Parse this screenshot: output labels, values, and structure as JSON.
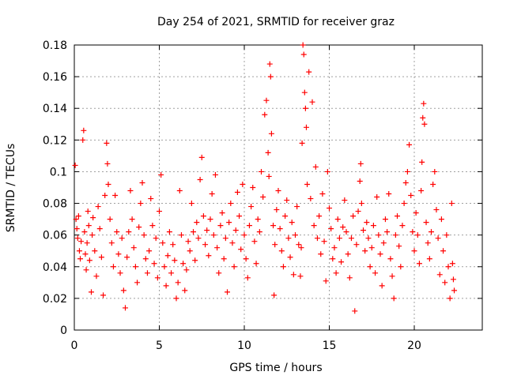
{
  "chart_data": {
    "type": "scatter",
    "title": "Day 254 of 2021, SRMTID for receiver graz",
    "xlabel": "GPS time / hours",
    "ylabel": "SRMTID / TECUs",
    "xlim": [
      0,
      24
    ],
    "ylim": [
      0,
      0.18
    ],
    "xticks": [
      0,
      5,
      10,
      15,
      20
    ],
    "xtick_labels": [
      "0",
      "5",
      "10",
      "15",
      "20"
    ],
    "yticks": [
      0,
      0.02,
      0.04,
      0.06,
      0.08,
      0.1,
      0.12,
      0.14,
      0.16,
      0.18
    ],
    "ytick_labels": [
      "0",
      "0.02",
      "0.04",
      "0.06",
      "0.08",
      "0.1",
      "0.12",
      "0.14",
      "0.16",
      "0.18"
    ],
    "grid": true,
    "marker": "plus",
    "color": "#ff0000",
    "series": [
      {
        "name": "graz",
        "points": [
          [
            0.05,
            0.104
          ],
          [
            0.1,
            0.07
          ],
          [
            0.15,
            0.064
          ],
          [
            0.2,
            0.058
          ],
          [
            0.25,
            0.072
          ],
          [
            0.3,
            0.05
          ],
          [
            0.35,
            0.045
          ],
          [
            0.4,
            0.056
          ],
          [
            0.5,
            0.12
          ],
          [
            0.55,
            0.126
          ],
          [
            0.6,
            0.062
          ],
          [
            0.65,
            0.048
          ],
          [
            0.7,
            0.038
          ],
          [
            0.75,
            0.055
          ],
          [
            0.8,
            0.075
          ],
          [
            0.85,
            0.066
          ],
          [
            0.9,
            0.044
          ],
          [
            1.0,
            0.024
          ],
          [
            1.05,
            0.06
          ],
          [
            1.1,
            0.071
          ],
          [
            1.2,
            0.05
          ],
          [
            1.3,
            0.034
          ],
          [
            1.4,
            0.078
          ],
          [
            1.5,
            0.064
          ],
          [
            1.6,
            0.046
          ],
          [
            1.7,
            0.022
          ],
          [
            1.8,
            0.085
          ],
          [
            1.9,
            0.118
          ],
          [
            1.95,
            0.105
          ],
          [
            2.0,
            0.092
          ],
          [
            2.1,
            0.07
          ],
          [
            2.2,
            0.055
          ],
          [
            2.3,
            0.04
          ],
          [
            2.4,
            0.085
          ],
          [
            2.5,
            0.062
          ],
          [
            2.6,
            0.048
          ],
          [
            2.7,
            0.036
          ],
          [
            2.8,
            0.058
          ],
          [
            2.9,
            0.025
          ],
          [
            3.0,
            0.014
          ],
          [
            3.1,
            0.046
          ],
          [
            3.2,
            0.062
          ],
          [
            3.3,
            0.088
          ],
          [
            3.4,
            0.07
          ],
          [
            3.5,
            0.052
          ],
          [
            3.6,
            0.04
          ],
          [
            3.7,
            0.03
          ],
          [
            3.8,
            0.065
          ],
          [
            3.9,
            0.08
          ],
          [
            4.0,
            0.093
          ],
          [
            4.1,
            0.06
          ],
          [
            4.2,
            0.045
          ],
          [
            4.3,
            0.036
          ],
          [
            4.4,
            0.05
          ],
          [
            4.5,
            0.083
          ],
          [
            4.6,
            0.066
          ],
          [
            4.7,
            0.042
          ],
          [
            4.8,
            0.058
          ],
          [
            4.9,
            0.033
          ],
          [
            5.0,
            0.075
          ],
          [
            5.1,
            0.098
          ],
          [
            5.2,
            0.055
          ],
          [
            5.3,
            0.04
          ],
          [
            5.4,
            0.028
          ],
          [
            5.5,
            0.047
          ],
          [
            5.6,
            0.062
          ],
          [
            5.7,
            0.036
          ],
          [
            5.8,
            0.054
          ],
          [
            5.9,
            0.044
          ],
          [
            6.0,
            0.02
          ],
          [
            6.1,
            0.03
          ],
          [
            6.2,
            0.088
          ],
          [
            6.3,
            0.06
          ],
          [
            6.4,
            0.042
          ],
          [
            6.5,
            0.025
          ],
          [
            6.6,
            0.038
          ],
          [
            6.7,
            0.056
          ],
          [
            6.8,
            0.05
          ],
          [
            6.9,
            0.08
          ],
          [
            7.0,
            0.062
          ],
          [
            7.1,
            0.044
          ],
          [
            7.2,
            0.068
          ],
          [
            7.3,
            0.058
          ],
          [
            7.4,
            0.095
          ],
          [
            7.5,
            0.109
          ],
          [
            7.6,
            0.072
          ],
          [
            7.7,
            0.054
          ],
          [
            7.8,
            0.063
          ],
          [
            7.9,
            0.047
          ],
          [
            8.0,
            0.07
          ],
          [
            8.1,
            0.086
          ],
          [
            8.2,
            0.06
          ],
          [
            8.3,
            0.098
          ],
          [
            8.4,
            0.052
          ],
          [
            8.5,
            0.036
          ],
          [
            8.6,
            0.066
          ],
          [
            8.7,
            0.074
          ],
          [
            8.8,
            0.045
          ],
          [
            8.9,
            0.058
          ],
          [
            9.0,
            0.024
          ],
          [
            9.1,
            0.068
          ],
          [
            9.2,
            0.08
          ],
          [
            9.3,
            0.055
          ],
          [
            9.4,
            0.04
          ],
          [
            9.5,
            0.063
          ],
          [
            9.6,
            0.087
          ],
          [
            9.7,
            0.072
          ],
          [
            9.8,
            0.051
          ],
          [
            9.9,
            0.092
          ],
          [
            10.0,
            0.06
          ],
          [
            10.1,
            0.045
          ],
          [
            10.2,
            0.033
          ],
          [
            10.3,
            0.066
          ],
          [
            10.4,
            0.078
          ],
          [
            10.5,
            0.09
          ],
          [
            10.6,
            0.056
          ],
          [
            10.7,
            0.042
          ],
          [
            10.8,
            0.07
          ],
          [
            10.9,
            0.062
          ],
          [
            11.0,
            0.1
          ],
          [
            11.1,
            0.084
          ],
          [
            11.2,
            0.136
          ],
          [
            11.3,
            0.145
          ],
          [
            11.4,
            0.112
          ],
          [
            11.45,
            0.097
          ],
          [
            11.5,
            0.168
          ],
          [
            11.55,
            0.16
          ],
          [
            11.6,
            0.124
          ],
          [
            11.7,
            0.066
          ],
          [
            11.75,
            0.022
          ],
          [
            11.8,
            0.054
          ],
          [
            11.9,
            0.076
          ],
          [
            12.0,
            0.088
          ],
          [
            12.1,
            0.064
          ],
          [
            12.2,
            0.05
          ],
          [
            12.3,
            0.04
          ],
          [
            12.4,
            0.072
          ],
          [
            12.5,
            0.082
          ],
          [
            12.6,
            0.058
          ],
          [
            12.7,
            0.046
          ],
          [
            12.8,
            0.068
          ],
          [
            12.9,
            0.035
          ],
          [
            13.0,
            0.06
          ],
          [
            13.1,
            0.078
          ],
          [
            13.2,
            0.054
          ],
          [
            13.3,
            0.034
          ],
          [
            13.35,
            0.052
          ],
          [
            13.4,
            0.118
          ],
          [
            13.45,
            0.18
          ],
          [
            13.5,
            0.174
          ],
          [
            13.55,
            0.15
          ],
          [
            13.6,
            0.14
          ],
          [
            13.65,
            0.128
          ],
          [
            13.7,
            0.092
          ],
          [
            13.8,
            0.163
          ],
          [
            13.9,
            0.083
          ],
          [
            14.0,
            0.144
          ],
          [
            14.1,
            0.066
          ],
          [
            14.2,
            0.103
          ],
          [
            14.3,
            0.058
          ],
          [
            14.4,
            0.072
          ],
          [
            14.5,
            0.048
          ],
          [
            14.6,
            0.086
          ],
          [
            14.7,
            0.056
          ],
          [
            14.8,
            0.031
          ],
          [
            14.9,
            0.1
          ],
          [
            15.0,
            0.077
          ],
          [
            15.1,
            0.064
          ],
          [
            15.2,
            0.045
          ],
          [
            15.3,
            0.052
          ],
          [
            15.4,
            0.036
          ],
          [
            15.5,
            0.07
          ],
          [
            15.6,
            0.058
          ],
          [
            15.7,
            0.043
          ],
          [
            15.8,
            0.065
          ],
          [
            15.9,
            0.082
          ],
          [
            16.0,
            0.062
          ],
          [
            16.1,
            0.048
          ],
          [
            16.2,
            0.033
          ],
          [
            16.3,
            0.058
          ],
          [
            16.4,
            0.072
          ],
          [
            16.5,
            0.012
          ],
          [
            16.6,
            0.054
          ],
          [
            16.7,
            0.075
          ],
          [
            16.8,
            0.094
          ],
          [
            16.85,
            0.105
          ],
          [
            16.9,
            0.08
          ],
          [
            17.0,
            0.063
          ],
          [
            17.1,
            0.05
          ],
          [
            17.2,
            0.068
          ],
          [
            17.3,
            0.058
          ],
          [
            17.4,
            0.04
          ],
          [
            17.5,
            0.052
          ],
          [
            17.6,
            0.066
          ],
          [
            17.7,
            0.036
          ],
          [
            17.8,
            0.084
          ],
          [
            17.9,
            0.06
          ],
          [
            18.0,
            0.048
          ],
          [
            18.1,
            0.028
          ],
          [
            18.2,
            0.055
          ],
          [
            18.3,
            0.07
          ],
          [
            18.4,
            0.062
          ],
          [
            18.5,
            0.086
          ],
          [
            18.6,
            0.045
          ],
          [
            18.7,
            0.034
          ],
          [
            18.8,
            0.02
          ],
          [
            18.9,
            0.06
          ],
          [
            19.0,
            0.072
          ],
          [
            19.1,
            0.053
          ],
          [
            19.2,
            0.04
          ],
          [
            19.3,
            0.066
          ],
          [
            19.4,
            0.08
          ],
          [
            19.5,
            0.093
          ],
          [
            19.6,
            0.1
          ],
          [
            19.7,
            0.117
          ],
          [
            19.8,
            0.085
          ],
          [
            19.9,
            0.062
          ],
          [
            20.0,
            0.05
          ],
          [
            20.1,
            0.074
          ],
          [
            20.2,
            0.06
          ],
          [
            20.3,
            0.042
          ],
          [
            20.4,
            0.088
          ],
          [
            20.45,
            0.106
          ],
          [
            20.5,
            0.134
          ],
          [
            20.55,
            0.143
          ],
          [
            20.6,
            0.13
          ],
          [
            20.7,
            0.068
          ],
          [
            20.8,
            0.055
          ],
          [
            20.9,
            0.045
          ],
          [
            21.0,
            0.062
          ],
          [
            21.1,
            0.092
          ],
          [
            21.2,
            0.1
          ],
          [
            21.3,
            0.076
          ],
          [
            21.4,
            0.058
          ],
          [
            21.5,
            0.035
          ],
          [
            21.6,
            0.07
          ],
          [
            21.7,
            0.05
          ],
          [
            21.8,
            0.03
          ],
          [
            21.9,
            0.06
          ],
          [
            22.0,
            0.04
          ],
          [
            22.1,
            0.02
          ],
          [
            22.2,
            0.08
          ],
          [
            22.25,
            0.042
          ],
          [
            22.3,
            0.032
          ],
          [
            22.35,
            0.025
          ]
        ]
      }
    ]
  }
}
